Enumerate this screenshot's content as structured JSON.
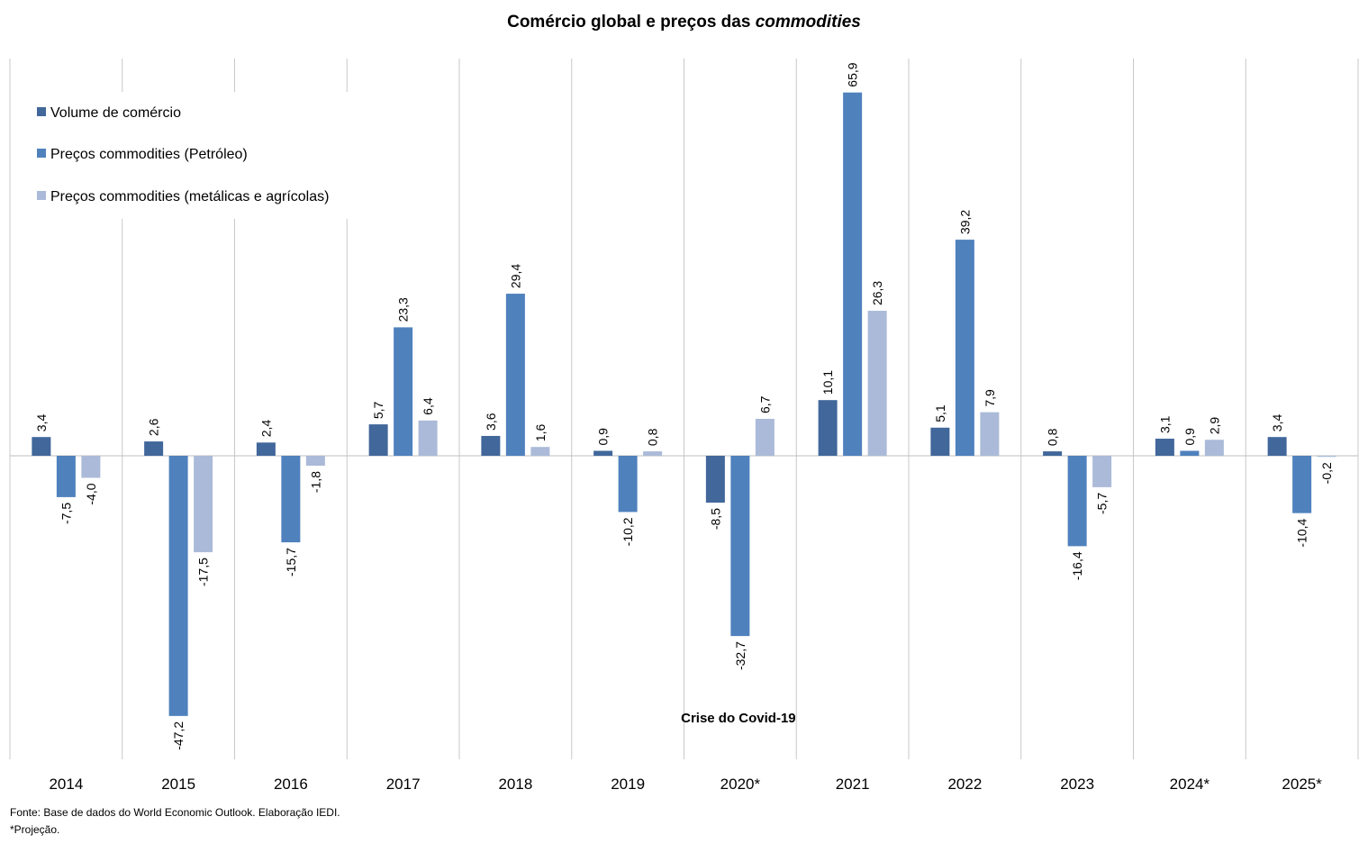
{
  "chart_data": {
    "type": "bar",
    "title": "Comércio global e preços das",
    "title_italic": "commodities",
    "categories": [
      "2014",
      "2015",
      "2016",
      "2017",
      "2018",
      "2019",
      "2020*",
      "2021",
      "2022",
      "2023",
      "2024*",
      "2025*"
    ],
    "series": [
      {
        "name": "Volume de comércio",
        "color": "#41679B",
        "values": [
          3.4,
          2.6,
          2.4,
          5.7,
          3.6,
          0.9,
          -8.5,
          10.1,
          5.1,
          0.8,
          3.1,
          3.4
        ],
        "labels": [
          "3,4",
          "2,6",
          "2,4",
          "5,7",
          "3,6",
          "0,9",
          "-8,5",
          "10,1",
          "5,1",
          "0,8",
          "3,1",
          "3,4"
        ]
      },
      {
        "name": "Preços commodities (Petróleo)",
        "color": "#4F81BD",
        "values": [
          -7.5,
          -47.2,
          -15.7,
          23.3,
          29.4,
          -10.2,
          -32.7,
          65.9,
          39.2,
          -16.4,
          0.9,
          -10.4
        ],
        "labels": [
          "-7,5",
          "-47,2",
          "-15,7",
          "23,3",
          "29,4",
          "-10,2",
          "-32,7",
          "65,9",
          "39,2",
          "-16,4",
          "0,9",
          "-10,4"
        ]
      },
      {
        "name": "Preços commodities (metálicas e agrícolas)",
        "color": "#ABBAD8",
        "values": [
          -4.0,
          -17.5,
          -1.8,
          6.4,
          1.6,
          0.8,
          6.7,
          26.3,
          7.9,
          -5.7,
          2.9,
          -0.2
        ],
        "labels": [
          "-4,0",
          "-17,5",
          "-1,8",
          "6,4",
          "1,6",
          "0,8",
          "6,7",
          "26,3",
          "7,9",
          "-5,7",
          "2,9",
          "-0,2"
        ]
      }
    ],
    "ylim": [
      -55,
      72
    ],
    "grid": "vertical separators between categories",
    "legend": "top-left",
    "annotation": "Crise do Covid-19"
  },
  "footnotes": {
    "source": "Fonte: Base de dados do World Economic Outlook. Elaboração IEDI.",
    "projection": "*Projeção."
  }
}
